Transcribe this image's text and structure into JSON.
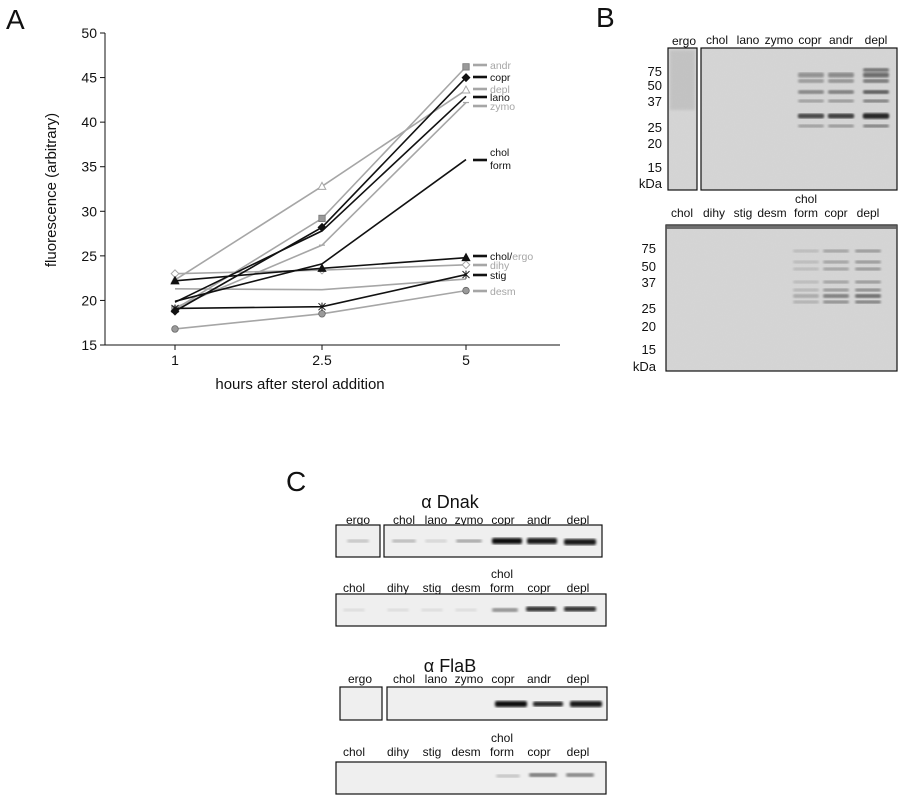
{
  "panels": {
    "a": "A",
    "b": "B",
    "c": "C"
  },
  "colors": {
    "black": "#111111",
    "gray": "#a6a6a6",
    "gel_bg": "#d9d9d9",
    "blot_bg": "#eeeeee"
  },
  "chart_data": {
    "type": "line",
    "x": [
      1,
      2.5,
      5
    ],
    "categories": [
      "1",
      "2.5",
      "5"
    ],
    "xlabel": "hours after sterol addition",
    "ylabel": "fluorescence (arbitrary)",
    "ylim": [
      15,
      50
    ],
    "yticks": [
      15,
      20,
      25,
      30,
      35,
      40,
      45,
      50
    ],
    "grid": false,
    "series": [
      {
        "key": "andr",
        "values": [
          19.0,
          29.2,
          46.2
        ],
        "color": "gray",
        "marker": "square"
      },
      {
        "key": "copr",
        "values": [
          18.8,
          28.2,
          45.0
        ],
        "color": "black",
        "marker": "diamond"
      },
      {
        "key": "depl",
        "values": [
          22.3,
          32.8,
          43.6
        ],
        "color": "gray",
        "marker": "triangle"
      },
      {
        "key": "lano",
        "values": [
          19.8,
          27.8,
          42.9
        ],
        "color": "black",
        "marker": "none"
      },
      {
        "key": "zymo",
        "values": [
          19.2,
          26.2,
          42.2
        ],
        "color": "gray",
        "marker": "dash"
      },
      {
        "key": "cholform",
        "values": [
          19.9,
          24.1,
          35.8
        ],
        "color": "black",
        "marker": "none"
      },
      {
        "key": "cholergo",
        "values": [
          22.2,
          23.6,
          24.8
        ],
        "color": "black",
        "marker": "triangle"
      },
      {
        "key": "dihy",
        "values": [
          23.0,
          23.4,
          24.0
        ],
        "color": "gray",
        "marker": "diamond"
      },
      {
        "key": "stig",
        "values": [
          19.1,
          19.3,
          22.9
        ],
        "color": "black",
        "marker": "star"
      },
      {
        "key": "desm",
        "values": [
          16.8,
          18.5,
          21.1
        ],
        "color": "gray",
        "marker": "circle"
      },
      {
        "key": "extra",
        "values": [
          21.3,
          21.2,
          22.4
        ],
        "color": "gray",
        "marker": "none"
      }
    ],
    "legend": [
      {
        "text": "andr",
        "color": "gray"
      },
      {
        "text": "copr",
        "color": "black"
      },
      {
        "text": "depl",
        "color": "gray"
      },
      {
        "text": "lano",
        "color": "black"
      },
      {
        "text": "zymo",
        "color": "gray"
      },
      {
        "text": "chol",
        "color": "black"
      },
      {
        "text": "form",
        "color": "black"
      },
      {
        "text_black": "chol/",
        "text_gray": "ergo"
      },
      {
        "text": "dihy",
        "color": "gray"
      },
      {
        "text": "stig",
        "color": "black"
      },
      {
        "text": "desm",
        "color": "gray"
      }
    ]
  },
  "gel_b": {
    "top": {
      "lanes_left": [
        "ergo"
      ],
      "lanes_right": [
        "chol",
        "lano",
        "zymo",
        "copr",
        "andr",
        "depl"
      ],
      "markers": [
        "75",
        "50",
        "37",
        "25",
        "20",
        "15"
      ],
      "unit": "kDa"
    },
    "bottom": {
      "lanes": [
        "chol",
        "dihy",
        "stig",
        "desm",
        "chol form",
        "copr",
        "depl"
      ],
      "markers": [
        "75",
        "50",
        "37",
        "25",
        "20",
        "15"
      ],
      "unit": "kDa"
    }
  },
  "blots_c": {
    "dnak_title": "α Dnak",
    "flab_title": "α FlaB",
    "row1_left": [
      "ergo"
    ],
    "row1_right": [
      "chol",
      "lano",
      "zymo",
      "copr",
      "andr",
      "depl"
    ],
    "row2": [
      "chol",
      "dihy",
      "stig",
      "desm",
      "chol form",
      "copr",
      "depl"
    ]
  }
}
